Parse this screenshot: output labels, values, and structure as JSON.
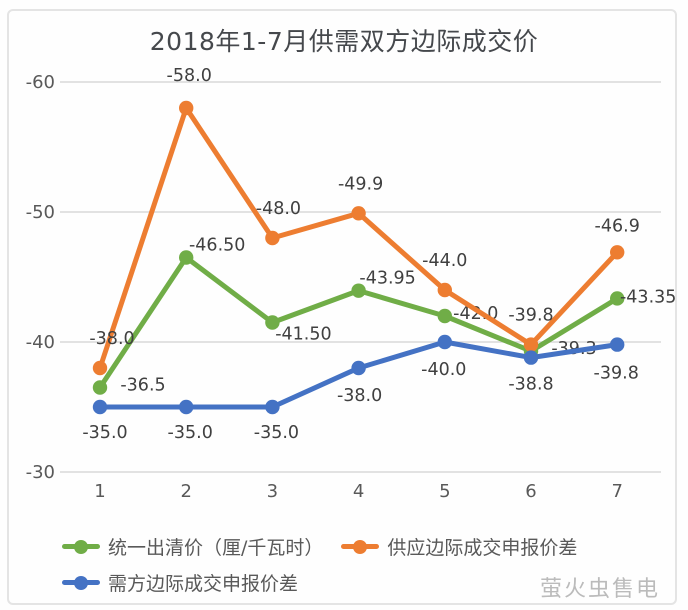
{
  "title": "2018年1-7月供需双方边际成交价",
  "watermark": "萤火虫售电",
  "colors": {
    "green": "#70AD47",
    "orange": "#ED7D31",
    "blue": "#4472C4",
    "grid": "#D9D9D9",
    "tick": "#595959",
    "data_label": "#404040",
    "title": "#45484C",
    "watermark": "#BBBBBB"
  },
  "chart_data": {
    "type": "line",
    "title": "2018年1-7月供需双方边际成交价",
    "x": [
      1,
      2,
      3,
      4,
      5,
      6,
      7
    ],
    "xlabel": "",
    "ylabel": "",
    "ylim": [
      -30,
      -60
    ],
    "y_axis_reversed": true,
    "y_ticks": [
      -60,
      -50,
      -40,
      -30
    ],
    "grid": true,
    "legend_position": "bottom",
    "series": [
      {
        "name": "统一出清价（厘/千瓦时）",
        "color_key": "green",
        "values": [
          -36.5,
          -46.5,
          -41.5,
          -43.95,
          -42.0,
          -39.3,
          -43.35
        ],
        "labels": [
          "-36.5",
          "-46.50",
          "-41.50",
          "-43.95",
          "-42.0",
          "-39.3",
          "-43.35"
        ],
        "label_offsets": [
          [
            43,
            -3
          ],
          [
            31,
            -13
          ],
          [
            31,
            11
          ],
          [
            29,
            -13
          ],
          [
            31,
            -3
          ],
          [
            43,
            -3
          ],
          [
            31,
            -2
          ]
        ]
      },
      {
        "name": "供应边际成交申报价差",
        "color_key": "orange",
        "values": [
          -38.0,
          -58.0,
          -48.0,
          -49.9,
          -44.0,
          -39.8,
          -46.9
        ],
        "labels": [
          "-38.0",
          "-58.0",
          "-48.0",
          "-49.9",
          "-44.0",
          "-39.8",
          "-46.9"
        ],
        "label_offsets": [
          [
            12,
            -30
          ],
          [
            3,
            -33
          ],
          [
            6,
            -30
          ],
          [
            2,
            -30
          ],
          [
            0,
            -30
          ],
          [
            0,
            -30
          ],
          [
            0,
            -27
          ]
        ]
      },
      {
        "name": "需方边际成交申报价差",
        "color_key": "blue",
        "values": [
          -35.0,
          -35.0,
          -35.0,
          -38.0,
          -40.0,
          -38.8,
          -39.8
        ],
        "labels": [
          "-35.0",
          "-35.0",
          "-35.0",
          "-38.0",
          "-40.0",
          "-38.8",
          "-39.8"
        ],
        "label_offsets": [
          [
            5,
            25
          ],
          [
            4,
            25
          ],
          [
            4,
            25
          ],
          [
            1,
            27
          ],
          [
            -1,
            27
          ],
          [
            0,
            26
          ],
          [
            -1,
            28
          ]
        ]
      }
    ]
  }
}
